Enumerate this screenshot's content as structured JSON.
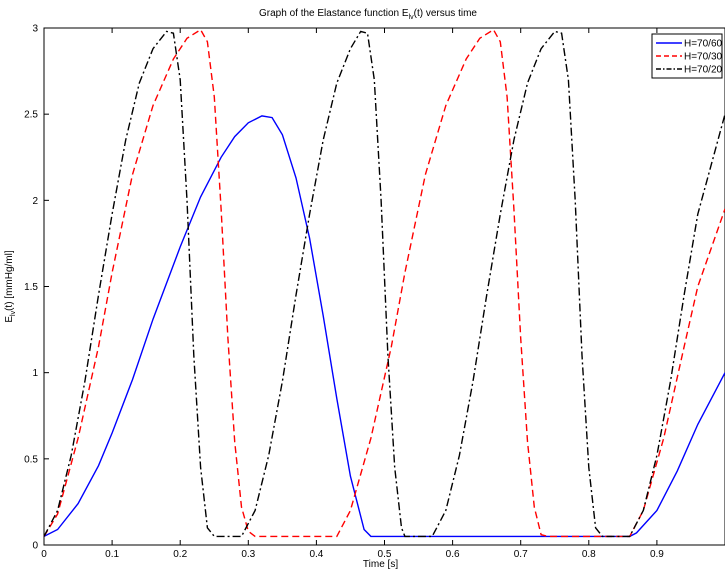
{
  "chart_data": {
    "type": "line",
    "title": "Graph of the Elastance function E",
    "title_sub": "lv",
    "title_tail": "(t) versus time",
    "xlabel": "Time [s]",
    "ylabel": "E",
    "ylabel_sub": "lv",
    "ylabel_tail": "(t)  [mmHg/ml]",
    "xlim": [
      0,
      1
    ],
    "ylim": [
      0,
      3
    ],
    "xticks": [
      "0",
      "0.1",
      "0.2",
      "0.3",
      "0.4",
      "0.5",
      "0.6",
      "0.7",
      "0.8",
      "0.9"
    ],
    "xtick_values": [
      0,
      0.1,
      0.2,
      0.3,
      0.4,
      0.5,
      0.6,
      0.7,
      0.8,
      0.9
    ],
    "yticks": [
      "0",
      "0.5",
      "1",
      "1.5",
      "2",
      "2.5",
      "3"
    ],
    "ytick_values": [
      0,
      0.5,
      1,
      1.5,
      2,
      2.5,
      3
    ],
    "grid": false,
    "legend_position": "top-right",
    "series": [
      {
        "name": "H=70/60",
        "color": "#0000ff",
        "dash": "solid",
        "points": [
          [
            0,
            0.05
          ],
          [
            0.02,
            0.09
          ],
          [
            0.05,
            0.24
          ],
          [
            0.08,
            0.46
          ],
          [
            0.1,
            0.65
          ],
          [
            0.13,
            0.96
          ],
          [
            0.16,
            1.31
          ],
          [
            0.2,
            1.73
          ],
          [
            0.23,
            2.02
          ],
          [
            0.26,
            2.25
          ],
          [
            0.28,
            2.37
          ],
          [
            0.3,
            2.45
          ],
          [
            0.32,
            2.49
          ],
          [
            0.335,
            2.48
          ],
          [
            0.35,
            2.38
          ],
          [
            0.37,
            2.13
          ],
          [
            0.39,
            1.78
          ],
          [
            0.41,
            1.33
          ],
          [
            0.43,
            0.85
          ],
          [
            0.45,
            0.4
          ],
          [
            0.47,
            0.09
          ],
          [
            0.48,
            0.05
          ],
          [
            0.86,
            0.05
          ],
          [
            0.87,
            0.07
          ],
          [
            0.9,
            0.2
          ],
          [
            0.93,
            0.43
          ],
          [
            0.96,
            0.7
          ],
          [
            1.0,
            1.0
          ]
        ]
      },
      {
        "name": "H=70/30",
        "color": "#ff0000",
        "dash": "dashed",
        "points": [
          [
            0,
            0.05
          ],
          [
            0.02,
            0.18
          ],
          [
            0.05,
            0.62
          ],
          [
            0.08,
            1.15
          ],
          [
            0.1,
            1.58
          ],
          [
            0.13,
            2.15
          ],
          [
            0.16,
            2.55
          ],
          [
            0.19,
            2.82
          ],
          [
            0.21,
            2.94
          ],
          [
            0.23,
            2.99
          ],
          [
            0.24,
            2.92
          ],
          [
            0.25,
            2.6
          ],
          [
            0.26,
            1.95
          ],
          [
            0.27,
            1.2
          ],
          [
            0.28,
            0.6
          ],
          [
            0.29,
            0.22
          ],
          [
            0.3,
            0.08
          ],
          [
            0.31,
            0.05
          ],
          [
            0.43,
            0.05
          ],
          [
            0.45,
            0.2
          ],
          [
            0.48,
            0.62
          ],
          [
            0.51,
            1.15
          ],
          [
            0.53,
            1.58
          ],
          [
            0.56,
            2.15
          ],
          [
            0.59,
            2.55
          ],
          [
            0.62,
            2.82
          ],
          [
            0.64,
            2.94
          ],
          [
            0.66,
            2.99
          ],
          [
            0.67,
            2.92
          ],
          [
            0.68,
            2.6
          ],
          [
            0.69,
            1.95
          ],
          [
            0.7,
            1.2
          ],
          [
            0.71,
            0.6
          ],
          [
            0.72,
            0.22
          ],
          [
            0.73,
            0.06
          ],
          [
            0.74,
            0.05
          ],
          [
            0.86,
            0.05
          ],
          [
            0.88,
            0.2
          ],
          [
            0.91,
            0.62
          ],
          [
            0.94,
            1.15
          ],
          [
            0.96,
            1.5
          ],
          [
            1.0,
            1.95
          ]
        ]
      },
      {
        "name": "H=70/20",
        "color": "#000000",
        "dash": "dashdot",
        "points": [
          [
            0,
            0.05
          ],
          [
            0.02,
            0.2
          ],
          [
            0.04,
            0.52
          ],
          [
            0.06,
            0.95
          ],
          [
            0.08,
            1.45
          ],
          [
            0.1,
            1.92
          ],
          [
            0.12,
            2.35
          ],
          [
            0.14,
            2.68
          ],
          [
            0.16,
            2.88
          ],
          [
            0.18,
            2.98
          ],
          [
            0.19,
            2.97
          ],
          [
            0.2,
            2.7
          ],
          [
            0.21,
            2.0
          ],
          [
            0.22,
            1.1
          ],
          [
            0.23,
            0.45
          ],
          [
            0.24,
            0.1
          ],
          [
            0.25,
            0.05
          ],
          [
            0.29,
            0.05
          ],
          [
            0.31,
            0.2
          ],
          [
            0.33,
            0.52
          ],
          [
            0.35,
            0.95
          ],
          [
            0.37,
            1.45
          ],
          [
            0.39,
            1.92
          ],
          [
            0.41,
            2.35
          ],
          [
            0.43,
            2.68
          ],
          [
            0.45,
            2.88
          ],
          [
            0.465,
            2.98
          ],
          [
            0.475,
            2.97
          ],
          [
            0.485,
            2.7
          ],
          [
            0.495,
            2.0
          ],
          [
            0.505,
            1.1
          ],
          [
            0.515,
            0.45
          ],
          [
            0.525,
            0.1
          ],
          [
            0.53,
            0.05
          ],
          [
            0.57,
            0.05
          ],
          [
            0.59,
            0.2
          ],
          [
            0.61,
            0.52
          ],
          [
            0.63,
            0.95
          ],
          [
            0.65,
            1.45
          ],
          [
            0.67,
            1.92
          ],
          [
            0.69,
            2.35
          ],
          [
            0.71,
            2.68
          ],
          [
            0.73,
            2.88
          ],
          [
            0.75,
            2.98
          ],
          [
            0.76,
            2.97
          ],
          [
            0.77,
            2.7
          ],
          [
            0.78,
            2.0
          ],
          [
            0.79,
            1.1
          ],
          [
            0.8,
            0.45
          ],
          [
            0.81,
            0.1
          ],
          [
            0.82,
            0.05
          ],
          [
            0.86,
            0.05
          ],
          [
            0.88,
            0.2
          ],
          [
            0.9,
            0.52
          ],
          [
            0.92,
            0.95
          ],
          [
            0.94,
            1.45
          ],
          [
            0.96,
            1.92
          ],
          [
            1.0,
            2.5
          ]
        ]
      }
    ]
  }
}
